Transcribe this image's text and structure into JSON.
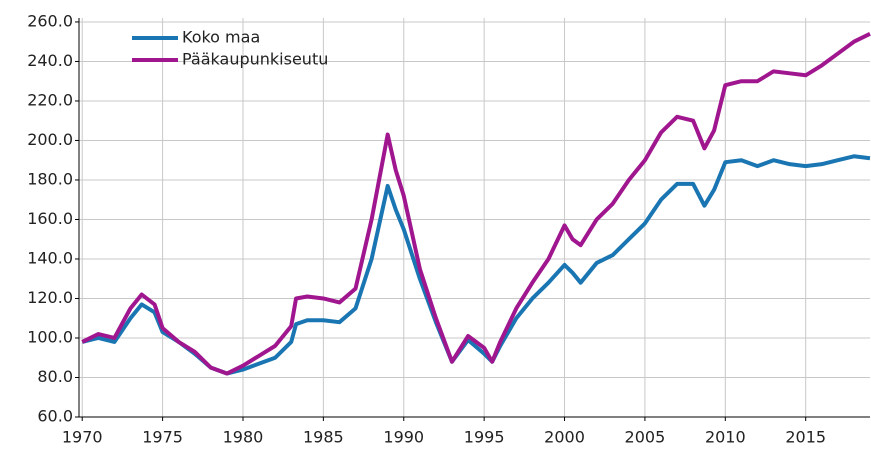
{
  "chart_data": {
    "type": "line",
    "x": [
      1970,
      1971,
      1972,
      1973,
      1973.7,
      1974.5,
      1975,
      1976,
      1977,
      1978,
      1979,
      1980,
      1981,
      1982,
      1983,
      1983.3,
      1984,
      1985,
      1986,
      1987,
      1988,
      1989,
      1989.5,
      1990,
      1991,
      1992,
      1993,
      1994,
      1995,
      1995.5,
      1996,
      1997,
      1998,
      1999,
      2000,
      2000.5,
      2001,
      2002,
      2003,
      2004,
      2005,
      2006,
      2007,
      2008,
      2008.7,
      2009.3,
      2010,
      2011,
      2012,
      2013,
      2014,
      2015,
      2016,
      2017,
      2018,
      2019
    ],
    "series": [
      {
        "name": "Koko maa",
        "color": "#1a76b2",
        "values": [
          98,
          100,
          98,
          110,
          117,
          113,
          103,
          98,
          92,
          85,
          82,
          84,
          87,
          90,
          98,
          107,
          109,
          109,
          108,
          115,
          140,
          177,
          165,
          155,
          130,
          108,
          88,
          99,
          92,
          88,
          96,
          110,
          120,
          128,
          137,
          133,
          128,
          138,
          142,
          150,
          158,
          170,
          178,
          178,
          167,
          175,
          189,
          190,
          187,
          190,
          188,
          187,
          188,
          190,
          192,
          191
        ]
      },
      {
        "name": "Pääkaupunkiseutu",
        "color": "#a0168e",
        "values": [
          98,
          102,
          100,
          115,
          122,
          117,
          105,
          98,
          93,
          85,
          82,
          86,
          91,
          96,
          106,
          120,
          121,
          120,
          118,
          125,
          160,
          203,
          185,
          172,
          135,
          110,
          88,
          101,
          95,
          88,
          98,
          115,
          128,
          140,
          157,
          150,
          147,
          160,
          168,
          180,
          190,
          204,
          212,
          210,
          196,
          205,
          228,
          230,
          230,
          235,
          234,
          233,
          238,
          244,
          250,
          254
        ]
      }
    ],
    "xlim": [
      1969.8,
      2019
    ],
    "xticks": [
      1970,
      1975,
      1980,
      1985,
      1990,
      1995,
      2000,
      2005,
      2010,
      2015
    ],
    "ylim": [
      60,
      262
    ],
    "yticks": [
      {
        "value": 60,
        "label": "60.0"
      },
      {
        "value": 80,
        "label": "80.0"
      },
      {
        "value": 100,
        "label": "100.0"
      },
      {
        "value": 120,
        "label": "120.0"
      },
      {
        "value": 140,
        "label": "140.0"
      },
      {
        "value": 160,
        "label": "160.0"
      },
      {
        "value": 180,
        "label": "180.0"
      },
      {
        "value": 200,
        "label": "200.0"
      },
      {
        "value": 220,
        "label": "220.0"
      },
      {
        "value": 240,
        "label": "240.0"
      },
      {
        "value": 260,
        "label": "260.0"
      }
    ],
    "grid": true,
    "legend": "upper left"
  }
}
